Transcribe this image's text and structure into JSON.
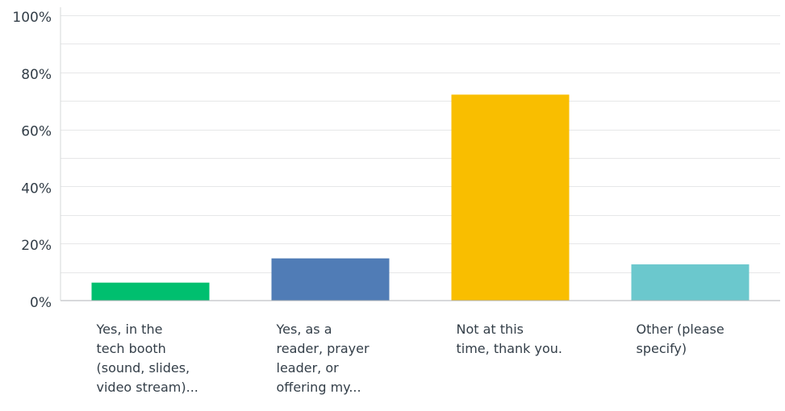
{
  "chart_data": {
    "type": "bar",
    "categories": [
      [
        "Yes, in the",
        "tech booth",
        "(sound, slides,",
        "video stream)..."
      ],
      [
        "Yes, as a",
        "reader, prayer",
        "leader, or",
        "offering my..."
      ],
      [
        "Not at this",
        "time, thank you."
      ],
      [
        "Other (please",
        "specify)"
      ]
    ],
    "values": [
      6.3,
      14.8,
      72.2,
      12.7
    ],
    "ylim": [
      0,
      100
    ],
    "y_ticks": [
      "0%",
      "20%",
      "40%",
      "60%",
      "80%",
      "100%"
    ],
    "colors": [
      "#00bf6f",
      "#507cb6",
      "#f9be00",
      "#6bc8cd"
    ],
    "grid": true,
    "title": "",
    "xlabel": "",
    "ylabel": ""
  }
}
